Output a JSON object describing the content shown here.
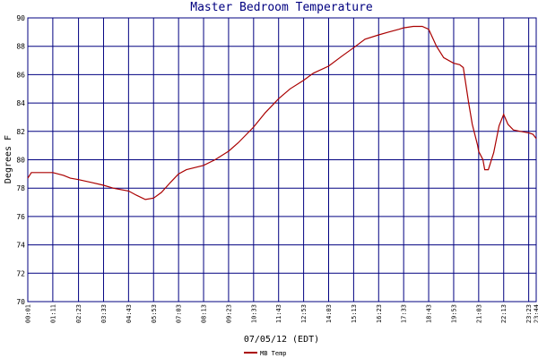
{
  "chart_data": {
    "type": "line",
    "title": "Master Bedroom Temperature",
    "xlabel": "07/05/12 (EDT)",
    "ylabel": "Degrees F",
    "ylim": [
      70,
      90
    ],
    "yticks": [
      70,
      72,
      74,
      76,
      78,
      80,
      82,
      84,
      86,
      88,
      90
    ],
    "x_tick_labels": [
      "00:01",
      "01:11",
      "02:23",
      "03:33",
      "04:43",
      "05:53",
      "07:03",
      "08:13",
      "09:23",
      "10:33",
      "11:43",
      "12:53",
      "14:03",
      "15:13",
      "16:23",
      "17:33",
      "18:43",
      "19:53",
      "21:03",
      "22:13",
      "23:23",
      "23:44"
    ],
    "grid": true,
    "legend_position": "bottom-left",
    "colors": {
      "line": "#aa0000",
      "grid": "#000080",
      "title": "#000080"
    },
    "series": [
      {
        "name": "MB Temp",
        "x": [
          "00:01",
          "00:11",
          "01:11",
          "01:41",
          "02:00",
          "02:23",
          "03:00",
          "03:33",
          "04:00",
          "04:43",
          "05:05",
          "05:30",
          "05:53",
          "06:15",
          "06:40",
          "07:03",
          "07:25",
          "08:13",
          "08:45",
          "09:23",
          "09:50",
          "10:33",
          "11:05",
          "11:43",
          "12:15",
          "12:53",
          "13:20",
          "14:03",
          "14:40",
          "15:13",
          "15:45",
          "16:23",
          "16:50",
          "17:20",
          "17:33",
          "18:00",
          "18:25",
          "18:43",
          "19:05",
          "19:25",
          "19:53",
          "20:10",
          "20:20",
          "20:35",
          "20:45",
          "21:00",
          "21:03",
          "21:15",
          "21:20",
          "21:30",
          "21:45",
          "22:00",
          "22:13",
          "22:25",
          "22:40",
          "23:00",
          "23:23",
          "23:35",
          "23:44"
        ],
        "y": [
          78.7,
          79.1,
          79.1,
          78.9,
          78.7,
          78.6,
          78.4,
          78.2,
          78.0,
          77.8,
          77.5,
          77.2,
          77.3,
          77.7,
          78.4,
          79.0,
          79.3,
          79.6,
          80.0,
          80.6,
          81.2,
          82.3,
          83.3,
          84.3,
          85.0,
          85.6,
          86.1,
          86.6,
          87.3,
          87.9,
          88.5,
          88.8,
          89.0,
          89.2,
          89.3,
          89.4,
          89.4,
          89.2,
          88.0,
          87.2,
          86.8,
          86.7,
          86.5,
          84.0,
          82.5,
          81.0,
          80.6,
          80.0,
          79.3,
          79.3,
          80.5,
          82.4,
          83.2,
          82.5,
          82.1,
          82.0,
          81.9,
          81.8,
          81.5
        ]
      }
    ]
  }
}
